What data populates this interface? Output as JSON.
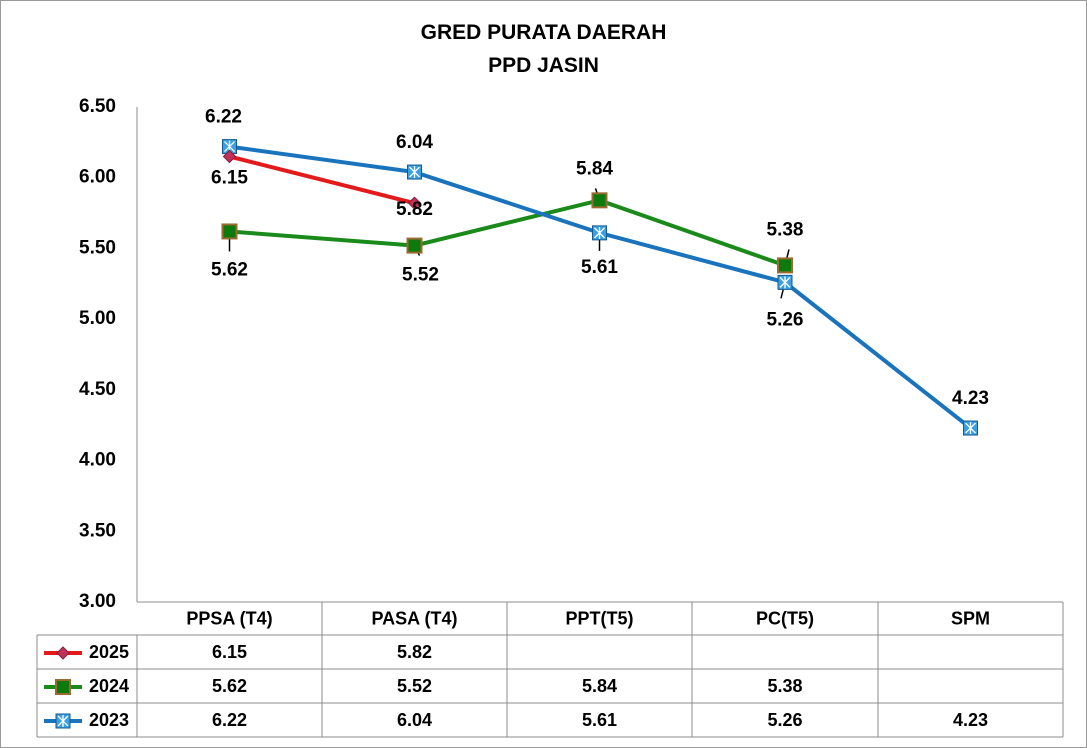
{
  "title": "GRED PURATA DAERAH",
  "subtitle": "PPD JASIN",
  "colors": {
    "2025": "#e31a1c",
    "2024": "#1a8a1a",
    "2023": "#1a74bd"
  },
  "chart_data": {
    "type": "line",
    "title": "GRED PURATA DAERAH",
    "subtitle": "PPD JASIN",
    "categories": [
      "PPSA (T4)",
      "PASA (T4)",
      "PPT(T5)",
      "PC(T5)",
      "SPM"
    ],
    "ylim": [
      3.0,
      6.5
    ],
    "yticks": [
      "6.50",
      "6.00",
      "5.50",
      "5.00",
      "4.50",
      "4.00",
      "3.50",
      "3.00"
    ],
    "legend": "data-table",
    "series": [
      {
        "name": "2025",
        "values": [
          6.15,
          5.82,
          null,
          null,
          null
        ],
        "labels": [
          "6.15",
          "5.82",
          "",
          "",
          ""
        ]
      },
      {
        "name": "2024",
        "values": [
          5.62,
          5.52,
          5.84,
          5.38,
          null
        ],
        "labels": [
          "5.62",
          "5.52",
          "5.84",
          "5.38",
          ""
        ]
      },
      {
        "name": "2023",
        "values": [
          6.22,
          6.04,
          5.61,
          5.26,
          4.23
        ],
        "labels": [
          "6.22",
          "6.04",
          "5.61",
          "5.26",
          "4.23"
        ]
      }
    ]
  }
}
